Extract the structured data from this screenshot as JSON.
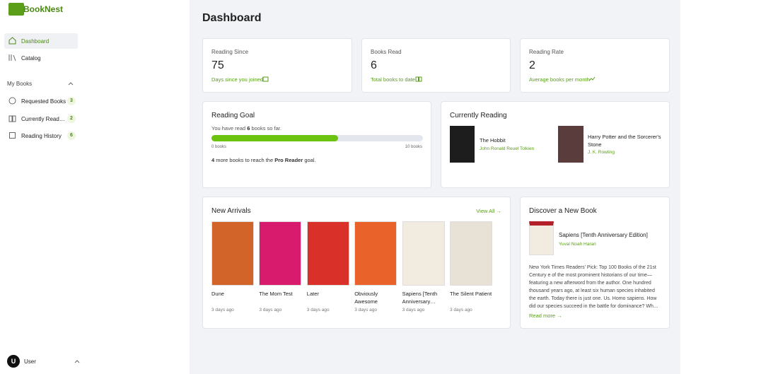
{
  "sidebar": {
    "brand": "BookNest",
    "nav": [
      "Dashboard",
      "Catalog"
    ],
    "section": "My Books",
    "my_books": [
      {
        "label": "Requested Books",
        "count": 3
      },
      {
        "label": "Currently Read…",
        "count": 2
      },
      {
        "label": "Reading History",
        "count": 6
      }
    ],
    "user": {
      "initial": "U",
      "name": "User"
    }
  },
  "header": {
    "title": "Dashboard"
  },
  "stats": [
    {
      "label": "Reading Since",
      "value": 75,
      "caption": "Days since you joined"
    },
    {
      "label": "Books Read",
      "value": 6,
      "caption": "Total books to date"
    },
    {
      "label": "Reading Rate",
      "value": 2,
      "caption": "Average books per month"
    }
  ],
  "reading_goal": {
    "title": "Reading Goal",
    "text_before": "You have read ",
    "read": 6,
    "text_after": " books so far.",
    "ticks": [
      {
        "value": 0,
        "label": "0 books"
      },
      {
        "value": 10,
        "label": "10 books"
      }
    ],
    "remaining": 4,
    "remaining_text": " more books to reach the ",
    "level": "Pro Reader",
    "level_after": " goal."
  },
  "currently_reading": {
    "title": "Currently Reading",
    "books": [
      {
        "title": "The Hobbit",
        "author": "John Ronald Reuel Tolkien"
      },
      {
        "title": "Harry Potter and the Sorcerer's Stone",
        "author": "J. K. Rowling"
      }
    ]
  },
  "new_arrivals": {
    "title": "New Arrivals",
    "link": "View All →",
    "books": [
      {
        "title": "Dune",
        "added": "3 days ago"
      },
      {
        "title": "The Mom Test",
        "added": "3 days ago"
      },
      {
        "title": "Later",
        "added": "3 days ago"
      },
      {
        "title": "Obviously Awesome",
        "added": "3 days ago"
      },
      {
        "title": "Sapiens [Tenth Anniversary…",
        "added": "3 days ago"
      },
      {
        "title": "The Silent Patient",
        "added": "3 days ago"
      }
    ]
  },
  "discover": {
    "title": "Discover a New Book",
    "book_title": "Sapiens [Tenth Anniversary Edition]",
    "author": "Yuval Noah Harari",
    "description": "New York Times Readers' Pick: Top 100 Books of the 21st Century e of the most prominent historians of our time—featuring a new afterword from the author. One hundred thousand years ago, at least six human species inhabited the earth. Today there is just one. Us. Homo sapiens. How did our species succeed in the battle for dominance? Wh…",
    "link": "Read more →"
  }
}
